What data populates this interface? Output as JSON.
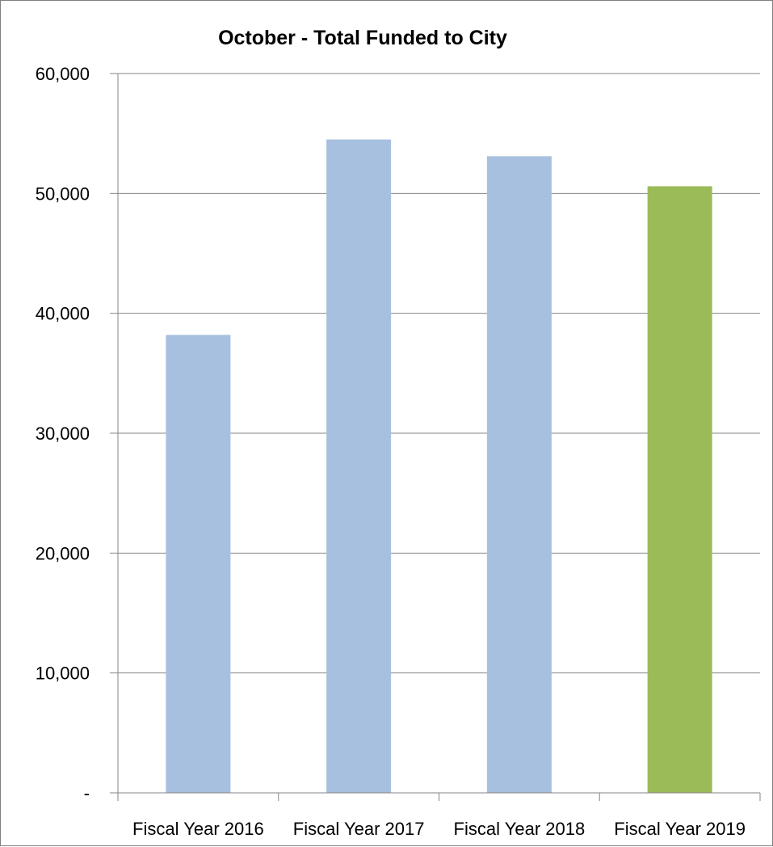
{
  "chart_data": {
    "type": "bar",
    "title": "October - Total Funded to City",
    "categories": [
      "Fiscal Year 2016",
      "Fiscal Year 2017",
      "Fiscal Year 2018",
      "Fiscal Year 2019"
    ],
    "values": [
      38200,
      54500,
      53100,
      50600
    ],
    "bar_colors": [
      "#a7c0df",
      "#a7c0df",
      "#a7c0df",
      "#9bbb59"
    ],
    "ylim": [
      0,
      60000
    ],
    "yticks": [
      0,
      10000,
      20000,
      30000,
      40000,
      50000,
      60000
    ],
    "ytick_labels": [
      "-",
      "10,000",
      "20,000",
      "30,000",
      "40,000",
      "50,000",
      "60,000"
    ],
    "grid": true,
    "gridline_color": "#868686",
    "legend": "none"
  }
}
